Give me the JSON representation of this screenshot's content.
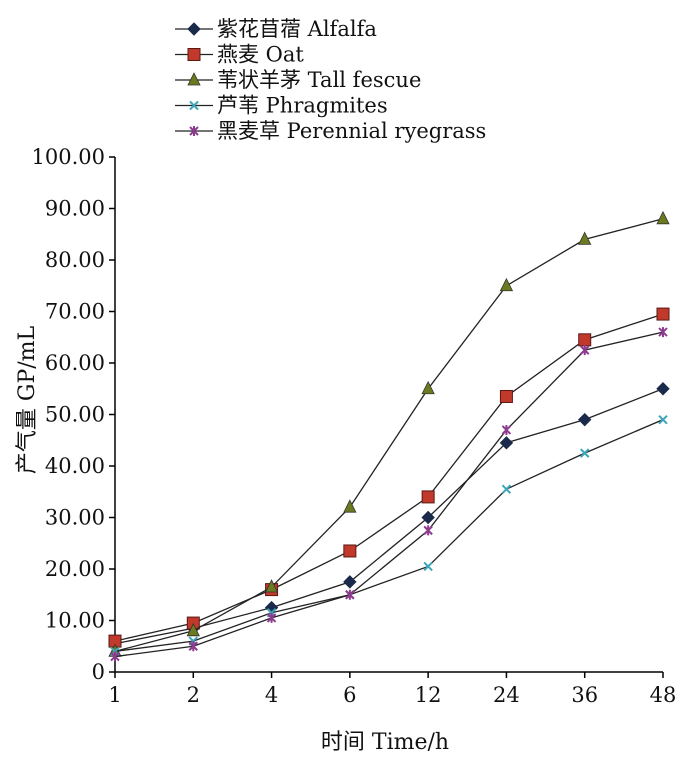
{
  "chart_data": {
    "type": "line",
    "title": "",
    "xlabel": "时间  Time/h",
    "ylabel": "产气量  GP/mL",
    "categories": [
      "1",
      "2",
      "4",
      "6",
      "12",
      "24",
      "36",
      "48"
    ],
    "ylim": [
      0,
      100
    ],
    "yticks": [
      "0",
      "10.00",
      "20.00",
      "30.00",
      "40.00",
      "50.00",
      "60.00",
      "70.00",
      "80.00",
      "90.00",
      "100.00"
    ],
    "grid": false,
    "legend_position": "top-left",
    "series": [
      {
        "name": "紫花苜蓿  Alfalfa",
        "marker": "diamond",
        "color": "#1a2a4a",
        "values": [
          5.5,
          8.5,
          12.5,
          17.5,
          30.0,
          44.5,
          49.0,
          55.0
        ]
      },
      {
        "name": "燕麦 Oat",
        "marker": "square",
        "color": "#c0392b",
        "values": [
          6.0,
          9.5,
          16.0,
          23.5,
          34.0,
          53.5,
          64.5,
          69.5
        ]
      },
      {
        "name": "苇状羊茅 Tall fescue",
        "marker": "triangle",
        "color": "#6b7a1e",
        "values": [
          4.0,
          8.0,
          16.5,
          32.0,
          55.0,
          75.0,
          84.0,
          88.0
        ]
      },
      {
        "name": "芦苇 Phragmites",
        "marker": "x",
        "color": "#3aa6b8",
        "values": [
          4.0,
          6.0,
          11.5,
          15.0,
          20.5,
          35.5,
          42.5,
          49.0
        ]
      },
      {
        "name": "黑麦草 Perennial ryegrass",
        "marker": "star",
        "color": "#8e3a8e",
        "values": [
          3.0,
          5.0,
          10.5,
          15.0,
          27.5,
          47.0,
          62.5,
          66.0
        ]
      }
    ]
  }
}
